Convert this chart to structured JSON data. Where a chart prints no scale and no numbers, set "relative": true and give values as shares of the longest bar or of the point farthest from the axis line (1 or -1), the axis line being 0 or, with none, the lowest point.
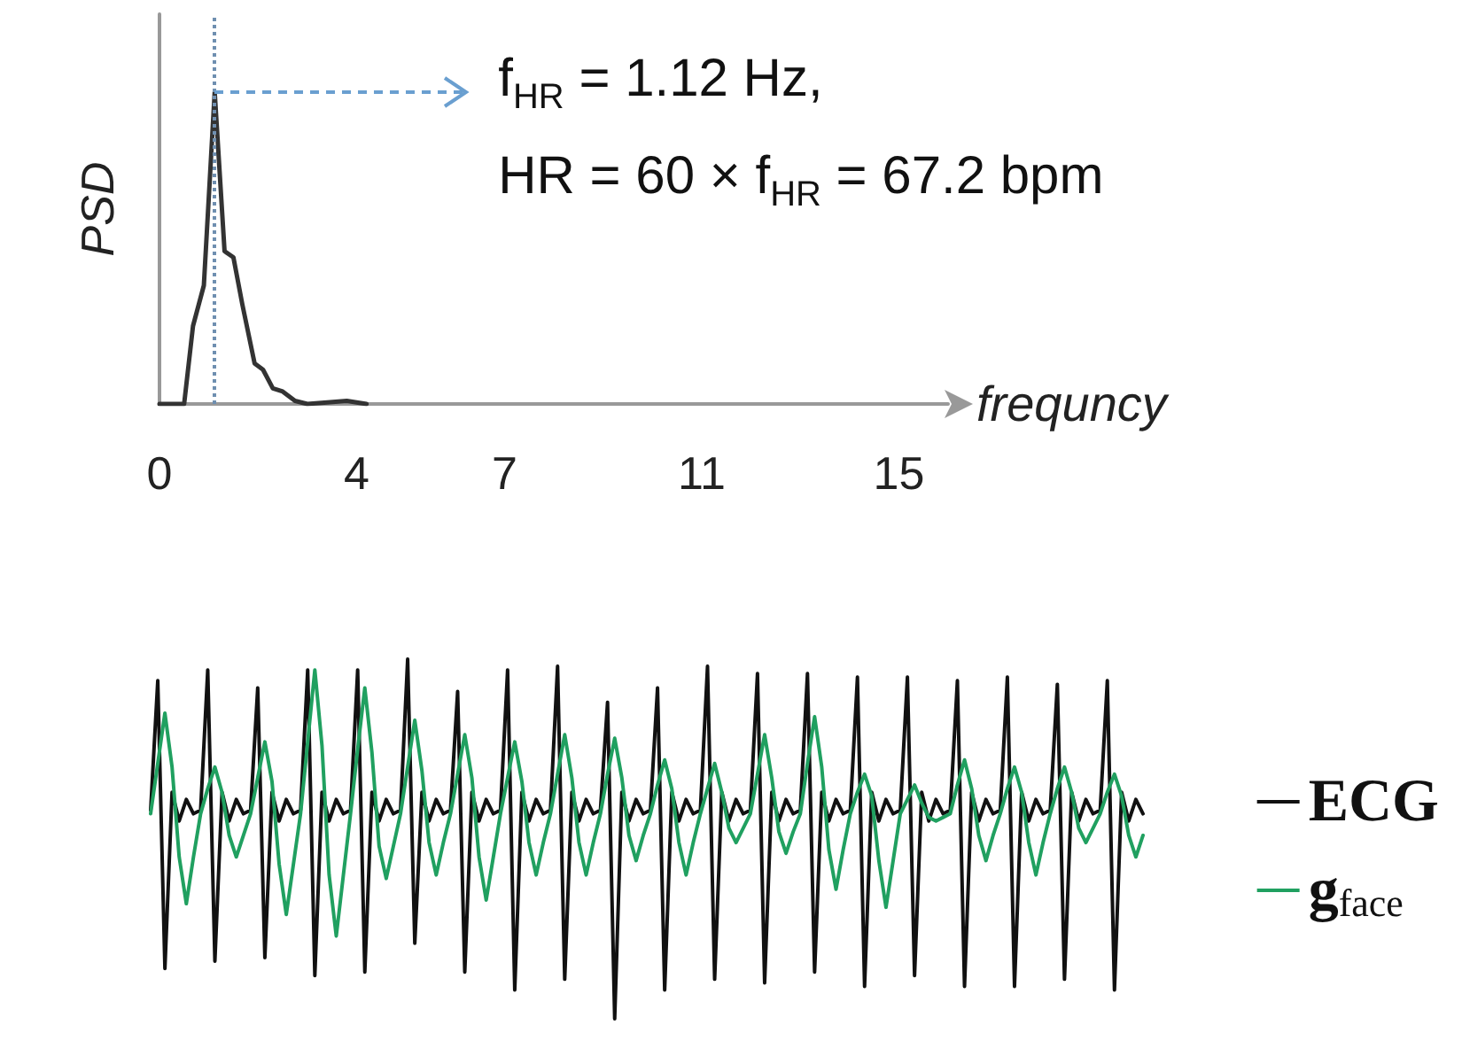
{
  "chart_data": [
    {
      "type": "line",
      "relative": true,
      "xlabel": "frequncy",
      "ylabel": "PSD",
      "xlim": [
        0,
        16
      ],
      "xticks": [
        0,
        4,
        7,
        11,
        15
      ],
      "tick_labels": "x",
      "grid": false,
      "legend": false,
      "marker": "none",
      "line_style": "solid",
      "color": "#333333",
      "x": [
        0,
        0.5,
        0.68,
        0.9,
        1.12,
        1.32,
        1.5,
        1.68,
        1.93,
        2.1,
        2.3,
        2.5,
        2.75,
        3,
        3.8,
        4.2
      ],
      "values": [
        0,
        0,
        0.25,
        0.38,
        1,
        0.49,
        0.47,
        0.32,
        0.13,
        0.11,
        0.05,
        0.04,
        0.01,
        0,
        0.01,
        0
      ],
      "ref_lines": [
        {
          "axis": "x",
          "value": 1.12,
          "label": null,
          "color": "#6f8fb0",
          "line_style": "dotted"
        }
      ],
      "annotations": [
        {
          "text": "f$_{HR}$ = 1.12 Hz,",
          "x": 1.12,
          "y": 1
        },
        "HR = 60 × f$_{HR}$ = 67.2 bpm"
      ]
    },
    {
      "type": "line",
      "relative": true,
      "tick_labels": false,
      "grid": false,
      "legend": "right",
      "marker": "none",
      "line_style": "solid",
      "categories": [
        null,
        null,
        null,
        null,
        null,
        null,
        null,
        null,
        null,
        null,
        null,
        null,
        null,
        null,
        null,
        null,
        null,
        null,
        null,
        null,
        null,
        null,
        null,
        null,
        null,
        null,
        null,
        null,
        null,
        null,
        null,
        null,
        null,
        null,
        null,
        null,
        null,
        null,
        null,
        null,
        null,
        null,
        null,
        null,
        null,
        null,
        null,
        null,
        null,
        null,
        null,
        null,
        null,
        null,
        null,
        null,
        null,
        null,
        null,
        null,
        null,
        null,
        null,
        null,
        null,
        null,
        null,
        null,
        null,
        null,
        null,
        null,
        null,
        null,
        null,
        null,
        null,
        null,
        null,
        null,
        null,
        null,
        null,
        null,
        null,
        null,
        null,
        null,
        null,
        null,
        null,
        null,
        null,
        null,
        null,
        null,
        null,
        null,
        null,
        null,
        null,
        null,
        null,
        null,
        null,
        null,
        null,
        null,
        null,
        null,
        null,
        null,
        null,
        null,
        null,
        null,
        null,
        null,
        null,
        null,
        null,
        null,
        null,
        null,
        null,
        null,
        null,
        null,
        null,
        null,
        null,
        null,
        null,
        null,
        null,
        null,
        null,
        null,
        null,
        null
      ],
      "series": [
        {
          "name": "ECG",
          "color": "#111111",
          "values": [
            0.58,
            0.94,
            0.14,
            0.63,
            0.55,
            0.61,
            0.57,
            0.58,
            0.97,
            0.16,
            0.63,
            0.55,
            0.61,
            0.57,
            0.58,
            0.92,
            0.17,
            0.63,
            0.55,
            0.61,
            0.57,
            0.58,
            0.97,
            0.12,
            0.63,
            0.55,
            0.61,
            0.57,
            0.58,
            0.97,
            0.13,
            0.63,
            0.55,
            0.61,
            0.57,
            0.58,
            1.0,
            0.21,
            0.63,
            0.55,
            0.61,
            0.57,
            0.58,
            0.91,
            0.13,
            0.63,
            0.55,
            0.61,
            0.57,
            0.58,
            0.97,
            0.08,
            0.63,
            0.55,
            0.61,
            0.57,
            0.58,
            0.98,
            0.11,
            0.63,
            0.55,
            0.61,
            0.57,
            0.58,
            0.88,
            0.0,
            0.63,
            0.55,
            0.61,
            0.57,
            0.58,
            0.92,
            0.08,
            0.63,
            0.55,
            0.61,
            0.57,
            0.58,
            0.98,
            0.11,
            0.63,
            0.55,
            0.61,
            0.57,
            0.58,
            0.96,
            0.1,
            0.63,
            0.55,
            0.61,
            0.57,
            0.58,
            0.96,
            0.13,
            0.63,
            0.55,
            0.61,
            0.57,
            0.58,
            0.95,
            0.09,
            0.63,
            0.55,
            0.61,
            0.57,
            0.58,
            0.95,
            0.12,
            0.63,
            0.55,
            0.61,
            0.57,
            0.58,
            0.94,
            0.09,
            0.63,
            0.55,
            0.61,
            0.57,
            0.58,
            0.95,
            0.09,
            0.63,
            0.55,
            0.61,
            0.57,
            0.58,
            0.93,
            0.11,
            0.63,
            0.55,
            0.61,
            0.57,
            0.58,
            0.94,
            0.08,
            0.63,
            0.55,
            0.61,
            0.57
          ]
        },
        {
          "name": "g$_{face}$",
          "color": "#20a060",
          "values": [
            0.57,
            0.71,
            0.85,
            0.7,
            0.45,
            0.32,
            0.45,
            0.57,
            0.64,
            0.7,
            0.63,
            0.51,
            0.45,
            0.51,
            0.57,
            0.67,
            0.77,
            0.66,
            0.43,
            0.29,
            0.43,
            0.57,
            0.77,
            0.97,
            0.76,
            0.4,
            0.23,
            0.4,
            0.57,
            0.75,
            0.92,
            0.74,
            0.48,
            0.39,
            0.48,
            0.57,
            0.7,
            0.83,
            0.69,
            0.49,
            0.4,
            0.49,
            0.57,
            0.68,
            0.79,
            0.67,
            0.45,
            0.33,
            0.45,
            0.57,
            0.67,
            0.77,
            0.66,
            0.49,
            0.4,
            0.49,
            0.57,
            0.68,
            0.79,
            0.67,
            0.49,
            0.4,
            0.49,
            0.57,
            0.68,
            0.78,
            0.67,
            0.51,
            0.44,
            0.51,
            0.57,
            0.65,
            0.72,
            0.64,
            0.49,
            0.4,
            0.49,
            0.57,
            0.64,
            0.71,
            0.63,
            0.53,
            0.49,
            0.53,
            0.57,
            0.68,
            0.79,
            0.67,
            0.52,
            0.46,
            0.52,
            0.57,
            0.71,
            0.84,
            0.7,
            0.47,
            0.36,
            0.47,
            0.57,
            0.63,
            0.68,
            0.62,
            0.44,
            0.31,
            0.44,
            0.57,
            0.61,
            0.65,
            0.6,
            0.56,
            0.55,
            0.56,
            0.57,
            0.65,
            0.72,
            0.64,
            0.51,
            0.44,
            0.51,
            0.57,
            0.64,
            0.7,
            0.63,
            0.49,
            0.4,
            0.49,
            0.57,
            0.64,
            0.7,
            0.63,
            0.53,
            0.49,
            0.53,
            0.57,
            0.63,
            0.68,
            0.62,
            0.51,
            0.45,
            0.51
          ]
        }
      ]
    }
  ]
}
